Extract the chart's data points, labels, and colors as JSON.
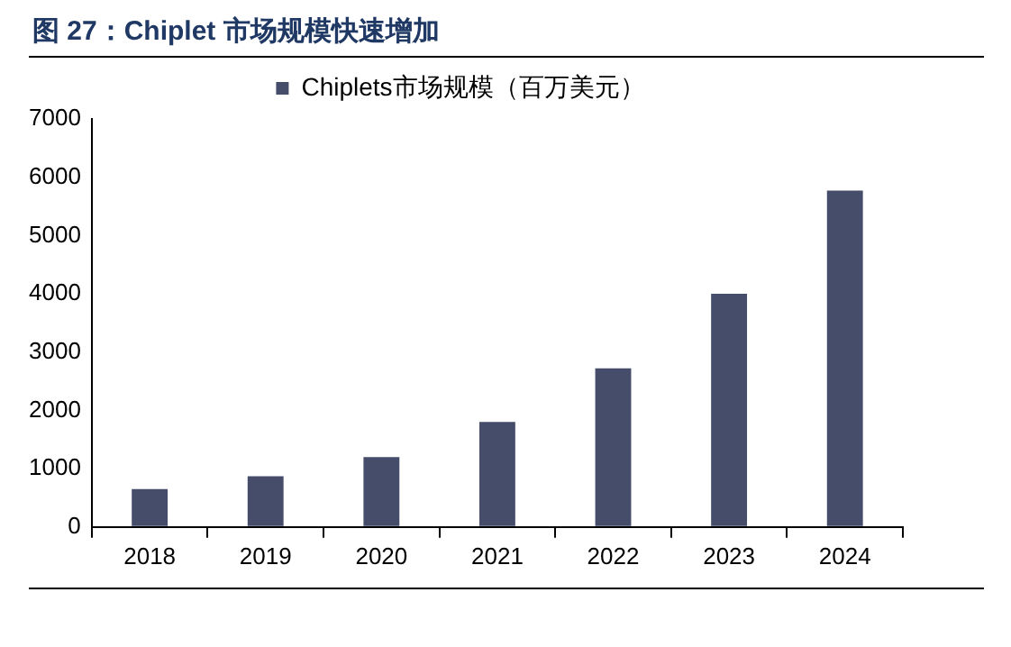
{
  "chart_data": {
    "type": "bar",
    "title": "图 27：Chiplet 市场规模快速增加",
    "categories": [
      "2018",
      "2019",
      "2020",
      "2021",
      "2022",
      "2023",
      "2024"
    ],
    "series": [
      {
        "name": "Chiplets市场规模（百万美元）",
        "color": "#454d6b",
        "values": [
          650,
          870,
          1200,
          1800,
          2720,
          4000,
          5770
        ]
      }
    ],
    "ylim": [
      0,
      7000
    ],
    "yticks": [
      0,
      1000,
      2000,
      3000,
      4000,
      5000,
      6000,
      7000
    ],
    "grid": false,
    "legend": "top"
  }
}
